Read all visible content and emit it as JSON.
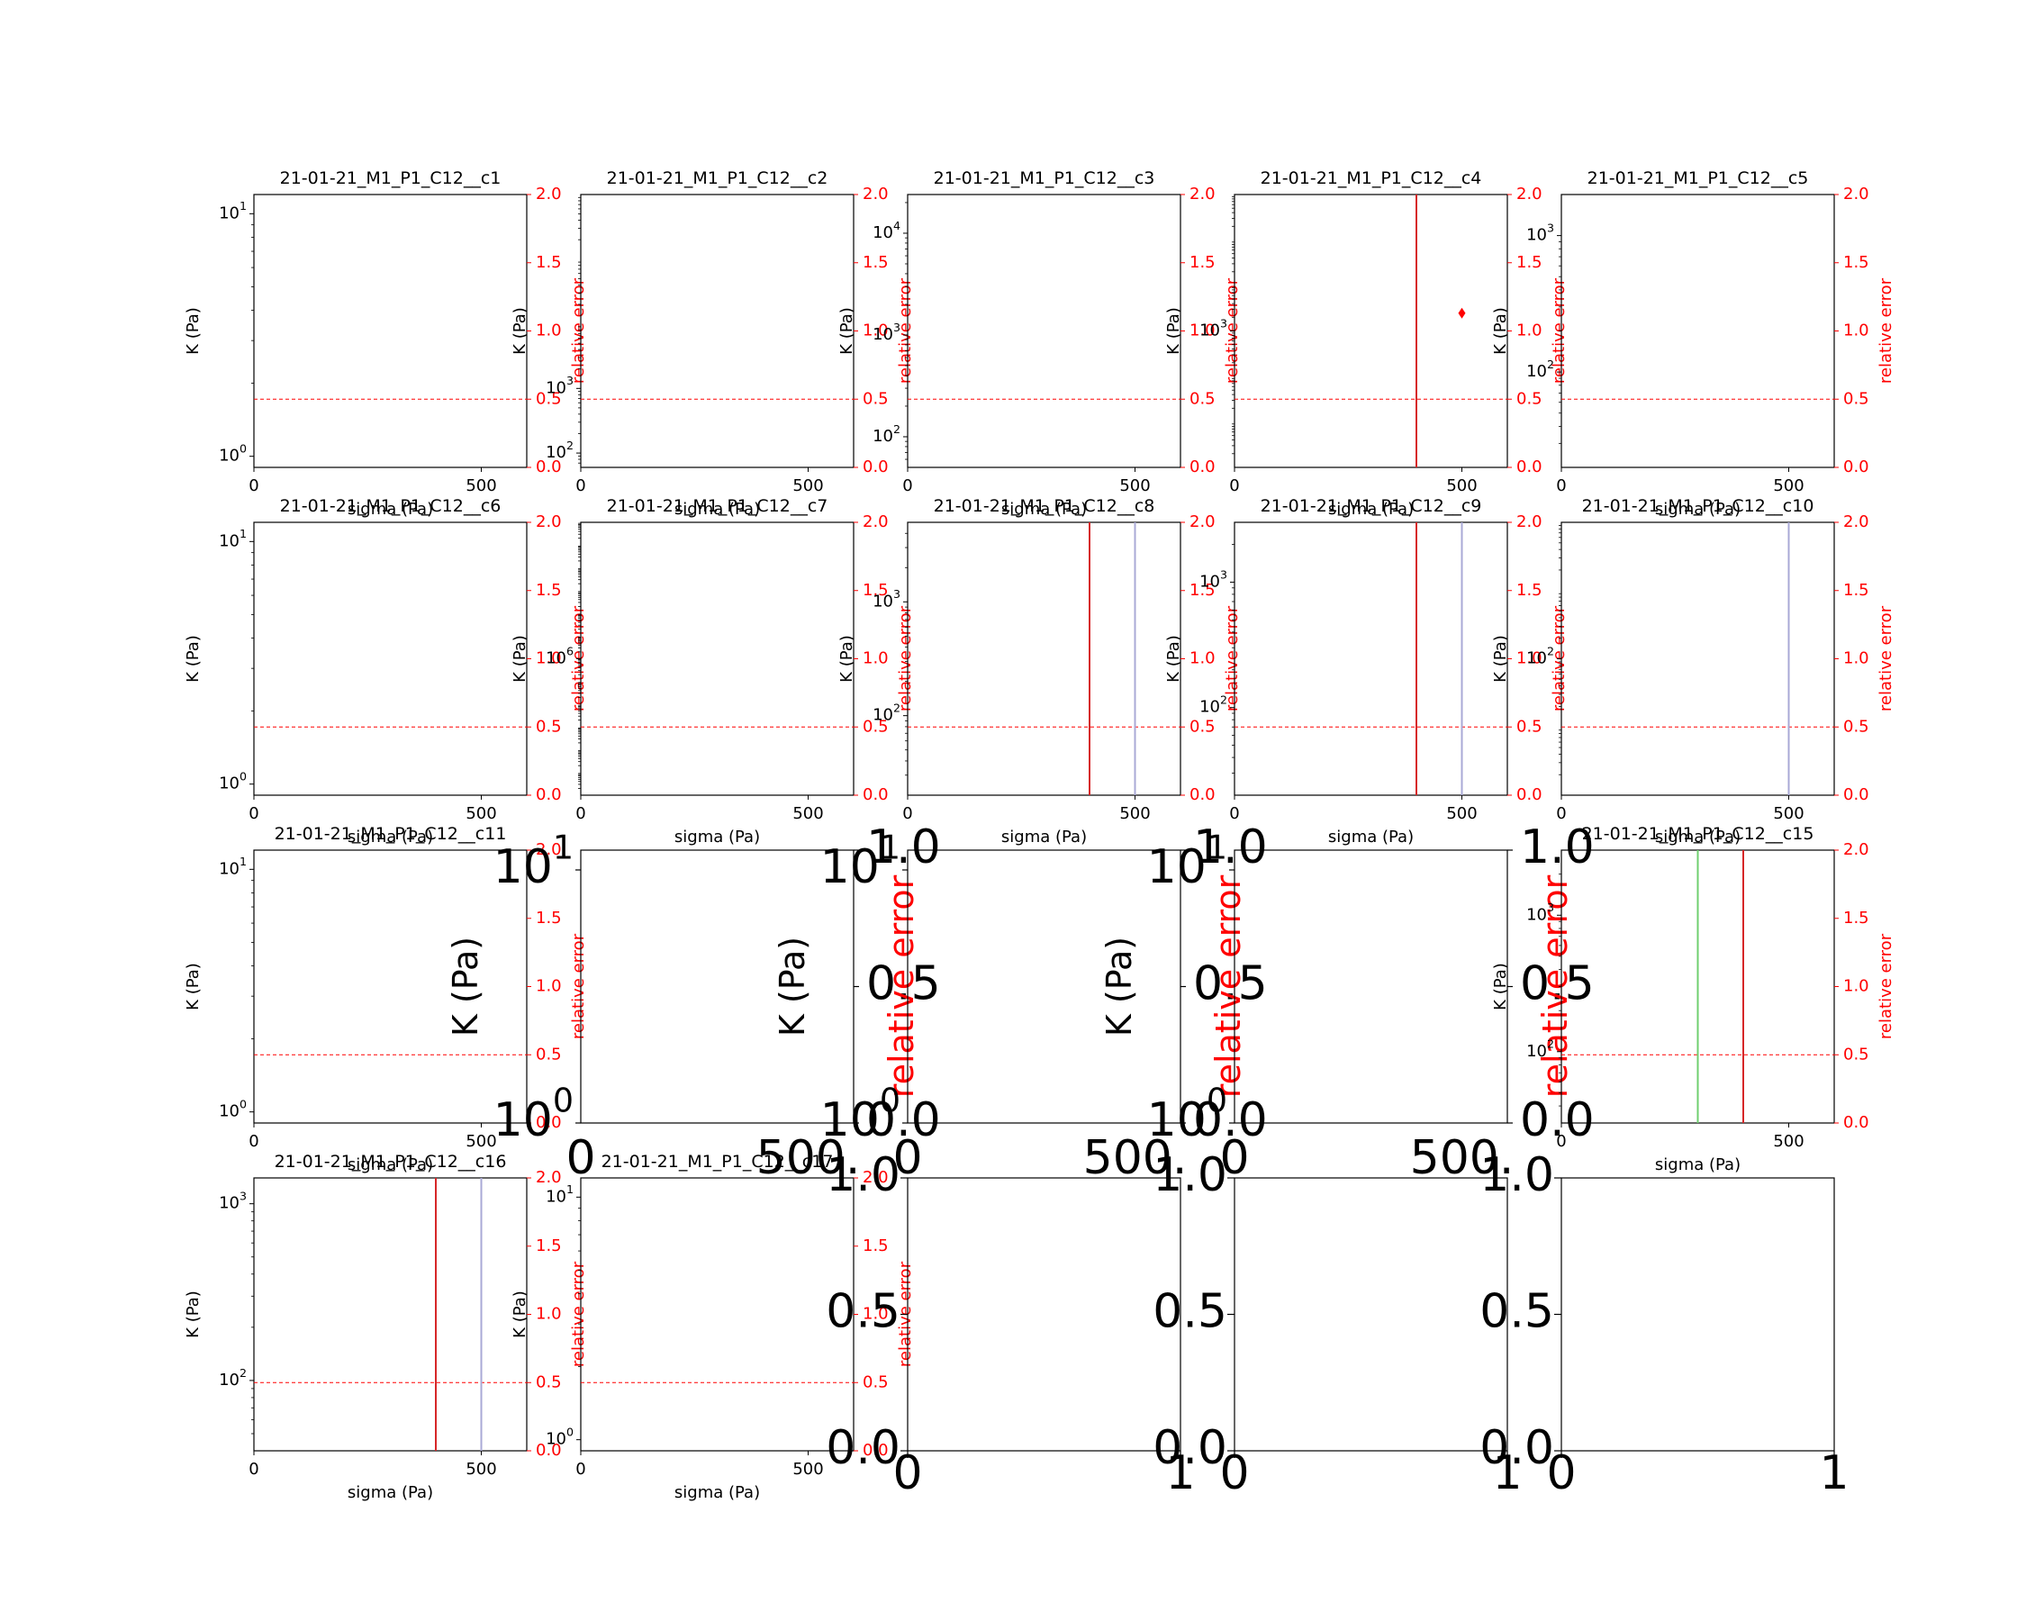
{
  "figure": {
    "xlabel": "sigma (Pa)",
    "ylabel": "K (Pa)",
    "y2label": "relative error"
  },
  "colors": {
    "axis": "#000000",
    "error": "#ff0000",
    "threshold": "#ff0000",
    "red_line": "#d62728",
    "lilac_line": "#a9a9d6",
    "green_line": "#6fcf6f"
  },
  "chart_data": [
    {
      "title": "21-01-21_M1_P1_C12__c1",
      "type": "line",
      "xlabel": "sigma (Pa)",
      "ylabel": "K (Pa)",
      "y2label": "relative error",
      "xlim": [
        0,
        600
      ],
      "xticks": [
        "0",
        "500"
      ],
      "y_scale": "log",
      "yticks": [
        {
          "v": 1,
          "base": "10",
          "exp": "0"
        },
        {
          "v": 10,
          "base": "10",
          "exp": "1"
        }
      ],
      "ylim": [
        0.9,
        12
      ],
      "y2lim": [
        0,
        2
      ],
      "y2ticks": [
        "0.0",
        "0.5",
        "1.0",
        "1.5",
        "2.0"
      ],
      "threshold": 0.5,
      "vlines": [],
      "points": []
    },
    {
      "title": "21-01-21_M1_P1_C12__c2",
      "type": "line",
      "xlabel": "sigma (Pa)",
      "ylabel": "K (Pa)",
      "y2label": "relative error",
      "xlim": [
        0,
        600
      ],
      "xticks": [
        "0",
        "500"
      ],
      "y_scale": "log",
      "yticks": [
        {
          "v": 100,
          "base": "10",
          "exp": "2"
        },
        {
          "v": 1000,
          "base": "10",
          "exp": "3"
        }
      ],
      "ylim": [
        60,
        1000000.0
      ],
      "y2lim": [
        0,
        2
      ],
      "y2ticks": [
        "0.0",
        "0.5",
        "1.0",
        "1.5",
        "2.0"
      ],
      "threshold": 0.5,
      "vlines": [],
      "points": []
    },
    {
      "title": "21-01-21_M1_P1_C12__c3",
      "type": "line",
      "xlabel": "sigma (Pa)",
      "ylabel": "K (Pa)",
      "y2label": "relative error",
      "xlim": [
        0,
        600
      ],
      "xticks": [
        "0",
        "500"
      ],
      "y_scale": "log",
      "yticks": [
        {
          "v": 100,
          "base": "10",
          "exp": "2"
        },
        {
          "v": 1000,
          "base": "10",
          "exp": "3"
        },
        {
          "v": 10000,
          "base": "10",
          "exp": "4"
        }
      ],
      "ylim": [
        50,
        24000.0
      ],
      "y2lim": [
        0,
        2
      ],
      "y2ticks": [
        "0.0",
        "0.5",
        "1.0",
        "1.5",
        "2.0"
      ],
      "threshold": 0.5,
      "vlines": [],
      "points": []
    },
    {
      "title": "21-01-21_M1_P1_C12__c4",
      "type": "line",
      "xlabel": "sigma (Pa)",
      "ylabel": "K (Pa)",
      "y2label": "relative error",
      "xlim": [
        0,
        600
      ],
      "xticks": [
        "0",
        "500"
      ],
      "y_scale": "log",
      "yticks": [
        {
          "v": 1000,
          "base": "10",
          "exp": "3"
        }
      ],
      "ylim": [
        1,
        1000000.0
      ],
      "y2lim": [
        0,
        2
      ],
      "y2ticks": [
        "0.0",
        "0.5",
        "1.0",
        "1.5",
        "2.0"
      ],
      "threshold": 0.5,
      "vlines": [
        {
          "x": 400,
          "color": "red"
        }
      ],
      "points": [
        {
          "x": 500,
          "y2": 1.13
        }
      ]
    },
    {
      "title": "21-01-21_M1_P1_C12__c5",
      "type": "line",
      "xlabel": "sigma (Pa)",
      "ylabel": "K (Pa)",
      "y2label": "relative error",
      "xlim": [
        0,
        600
      ],
      "xticks": [
        "0",
        "500"
      ],
      "y_scale": "log",
      "yticks": [
        {
          "v": 100,
          "base": "10",
          "exp": "2"
        },
        {
          "v": 1000,
          "base": "10",
          "exp": "3"
        }
      ],
      "ylim": [
        20,
        2000
      ],
      "y2lim": [
        0,
        2
      ],
      "y2ticks": [
        "0.0",
        "0.5",
        "1.0",
        "1.5",
        "2.0"
      ],
      "threshold": 0.5,
      "vlines": [],
      "points": []
    },
    {
      "title": "21-01-21_M1_P1_C12__c6",
      "type": "line",
      "xlabel": "sigma (Pa)",
      "ylabel": "K (Pa)",
      "y2label": "relative error",
      "xlim": [
        0,
        600
      ],
      "xticks": [
        "0",
        "500"
      ],
      "y_scale": "log",
      "yticks": [
        {
          "v": 1,
          "base": "10",
          "exp": "0"
        },
        {
          "v": 10,
          "base": "10",
          "exp": "1"
        }
      ],
      "ylim": [
        0.9,
        12
      ],
      "y2lim": [
        0,
        2
      ],
      "y2ticks": [
        "0.0",
        "0.5",
        "1.0",
        "1.5",
        "2.0"
      ],
      "threshold": 0.5,
      "vlines": [],
      "points": []
    },
    {
      "title": "21-01-21_M1_P1_C12__c7",
      "type": "line",
      "xlabel": "sigma (Pa)",
      "ylabel": "K (Pa)",
      "y2label": "relative error",
      "xlim": [
        0,
        600
      ],
      "xticks": [
        "0",
        "500"
      ],
      "y_scale": "log",
      "yticks": [
        {
          "v": 1000000,
          "base": "10",
          "exp": "6"
        }
      ],
      "ylim": [
        1,
        1000000000000.0
      ],
      "y2lim": [
        0,
        2
      ],
      "y2ticks": [
        "0.0",
        "0.5",
        "1.0",
        "1.5",
        "2.0"
      ],
      "threshold": 0.5,
      "vlines": [],
      "points": []
    },
    {
      "title": "21-01-21_M1_P1_C12__c8",
      "type": "line",
      "xlabel": "sigma (Pa)",
      "ylabel": "K (Pa)",
      "y2label": "relative error",
      "xlim": [
        0,
        600
      ],
      "xticks": [
        "0",
        "500"
      ],
      "y_scale": "log",
      "yticks": [
        {
          "v": 100,
          "base": "10",
          "exp": "2"
        },
        {
          "v": 1000,
          "base": "10",
          "exp": "3"
        }
      ],
      "ylim": [
        20,
        5000
      ],
      "y2lim": [
        0,
        2
      ],
      "y2ticks": [
        "0.0",
        "0.5",
        "1.0",
        "1.5",
        "2.0"
      ],
      "threshold": 0.5,
      "vlines": [
        {
          "x": 400,
          "color": "red"
        },
        {
          "x": 500,
          "color": "lilac"
        }
      ],
      "points": []
    },
    {
      "title": "21-01-21_M1_P1_C12__c9",
      "type": "line",
      "xlabel": "sigma (Pa)",
      "ylabel": "K (Pa)",
      "y2label": "relative error",
      "xlim": [
        0,
        600
      ],
      "xticks": [
        "0",
        "500"
      ],
      "y_scale": "log",
      "yticks": [
        {
          "v": 100,
          "base": "10",
          "exp": "2"
        },
        {
          "v": 1000,
          "base": "10",
          "exp": "3"
        }
      ],
      "ylim": [
        20,
        3000
      ],
      "y2lim": [
        0,
        2
      ],
      "y2ticks": [
        "0.0",
        "0.5",
        "1.0",
        "1.5",
        "2.0"
      ],
      "threshold": 0.5,
      "vlines": [
        {
          "x": 400,
          "color": "red"
        },
        {
          "x": 500,
          "color": "lilac"
        }
      ],
      "points": []
    },
    {
      "title": "21-01-21_M1_P1_C12__c10",
      "type": "line",
      "xlabel": "sigma (Pa)",
      "ylabel": "K (Pa)",
      "y2label": "relative error",
      "xlim": [
        0,
        600
      ],
      "xticks": [
        "0",
        "500"
      ],
      "y_scale": "log",
      "yticks": [
        {
          "v": 100,
          "base": "10",
          "exp": "2"
        }
      ],
      "ylim": [
        1,
        10000.0
      ],
      "y2lim": [
        0,
        2
      ],
      "y2ticks": [
        "0.0",
        "0.5",
        "1.0",
        "1.5",
        "2.0"
      ],
      "threshold": 0.5,
      "vlines": [
        {
          "x": 500,
          "color": "lilac"
        }
      ],
      "points": []
    },
    {
      "title": "21-01-21_M1_P1_C12__c11",
      "type": "line",
      "xlabel": "sigma (Pa)",
      "ylabel": "K (Pa)",
      "y2label": "relative error",
      "xlim": [
        0,
        600
      ],
      "xticks": [
        "0",
        "500"
      ],
      "y_scale": "log",
      "yticks": [
        {
          "v": 1,
          "base": "10",
          "exp": "0"
        },
        {
          "v": 10,
          "base": "10",
          "exp": "1"
        }
      ],
      "ylim": [
        0.9,
        12
      ],
      "y2lim": [
        0,
        2
      ],
      "y2ticks": [
        "0.0",
        "0.5",
        "1.0",
        "1.5",
        "2.0"
      ],
      "threshold": 0.5,
      "vlines": [],
      "points": []
    },
    {
      "title": "",
      "type": "empty-large",
      "ylabel": "K (Pa)",
      "y2label": "relative error",
      "xlim": [
        0,
        600
      ],
      "xticks": [
        "0",
        "500"
      ],
      "yticks": [
        {
          "v": 1,
          "base": "10",
          "exp": "0"
        },
        {
          "v": 10,
          "base": "10",
          "exp": "1"
        }
      ]
    },
    {
      "title": "",
      "type": "empty-large",
      "ylabel": "K (Pa)",
      "y2label": "relative error",
      "xlim": [
        0,
        600
      ],
      "xticks": [
        "0",
        "500"
      ],
      "yticks": [
        {
          "v": 1,
          "base": "10",
          "exp": "0"
        },
        {
          "v": 10,
          "base": "10",
          "exp": "1"
        }
      ]
    },
    {
      "title": "",
      "type": "empty-large",
      "ylabel": "K (Pa)",
      "y2label": "relative error",
      "xlim": [
        0,
        600
      ],
      "xticks": [
        "0",
        "500"
      ],
      "yticks": [
        {
          "v": 1,
          "base": "10",
          "exp": "0"
        },
        {
          "v": 10,
          "base": "10",
          "exp": "1"
        }
      ]
    },
    {
      "title": "21-01-21_M1_P1_C12__c15",
      "type": "line",
      "xlabel": "sigma (Pa)",
      "ylabel": "K (Pa)",
      "y2label": "relative error",
      "xlim": [
        0,
        600
      ],
      "xticks": [
        "0",
        "500"
      ],
      "y_scale": "log",
      "yticks": [
        {
          "v": 100,
          "base": "10",
          "exp": "2"
        },
        {
          "v": 1000,
          "base": "10",
          "exp": "3"
        }
      ],
      "ylim": [
        30,
        3000
      ],
      "y2lim": [
        0,
        2
      ],
      "y2ticks": [
        "0.0",
        "0.5",
        "1.0",
        "1.5",
        "2.0"
      ],
      "threshold": 0.5,
      "vlines": [
        {
          "x": 300,
          "color": "green"
        },
        {
          "x": 400,
          "color": "red"
        }
      ],
      "points": []
    },
    {
      "title": "21-01-21_M1_P1_C12__c16",
      "type": "line",
      "xlabel": "sigma (Pa)",
      "ylabel": "K (Pa)",
      "y2label": "relative error",
      "xlim": [
        0,
        600
      ],
      "xticks": [
        "0",
        "500"
      ],
      "y_scale": "log",
      "yticks": [
        {
          "v": 100,
          "base": "10",
          "exp": "2"
        },
        {
          "v": 1000,
          "base": "10",
          "exp": "3"
        }
      ],
      "ylim": [
        40,
        1400
      ],
      "y2lim": [
        0,
        2
      ],
      "y2ticks": [
        "0.0",
        "0.5",
        "1.0",
        "1.5",
        "2.0"
      ],
      "threshold": 0.5,
      "vlines": [
        {
          "x": 400,
          "color": "red"
        },
        {
          "x": 500,
          "color": "lilac"
        }
      ],
      "points": []
    },
    {
      "title": "21-01-21_M1_P1_C12__c17",
      "type": "line",
      "xlabel": "sigma (Pa)",
      "ylabel": "K (Pa)",
      "y2label": "relative error",
      "xlim": [
        0,
        600
      ],
      "xticks": [
        "0",
        "500"
      ],
      "y_scale": "log",
      "yticks": [
        {
          "v": 1,
          "base": "10",
          "exp": "0"
        },
        {
          "v": 10,
          "base": "10",
          "exp": "1"
        }
      ],
      "ylim": [
        0.9,
        12
      ],
      "y2lim": [
        0,
        2
      ],
      "y2ticks": [
        "0.0",
        "0.5",
        "1.0",
        "1.5",
        "2.0"
      ],
      "threshold": 0.5,
      "vlines": [],
      "points": []
    },
    {
      "title": "",
      "type": "empty-default",
      "xticks": [
        "0",
        "1"
      ],
      "yticks": [
        "0.0",
        "0.5",
        "1.0"
      ]
    },
    {
      "title": "",
      "type": "empty-default",
      "xticks": [
        "0",
        "1"
      ],
      "yticks": [
        "0.0",
        "0.5",
        "1.0"
      ]
    },
    {
      "title": "",
      "type": "empty-default",
      "xticks": [
        "0",
        "1"
      ],
      "yticks": [
        "0.0",
        "0.5",
        "1.0"
      ]
    }
  ]
}
